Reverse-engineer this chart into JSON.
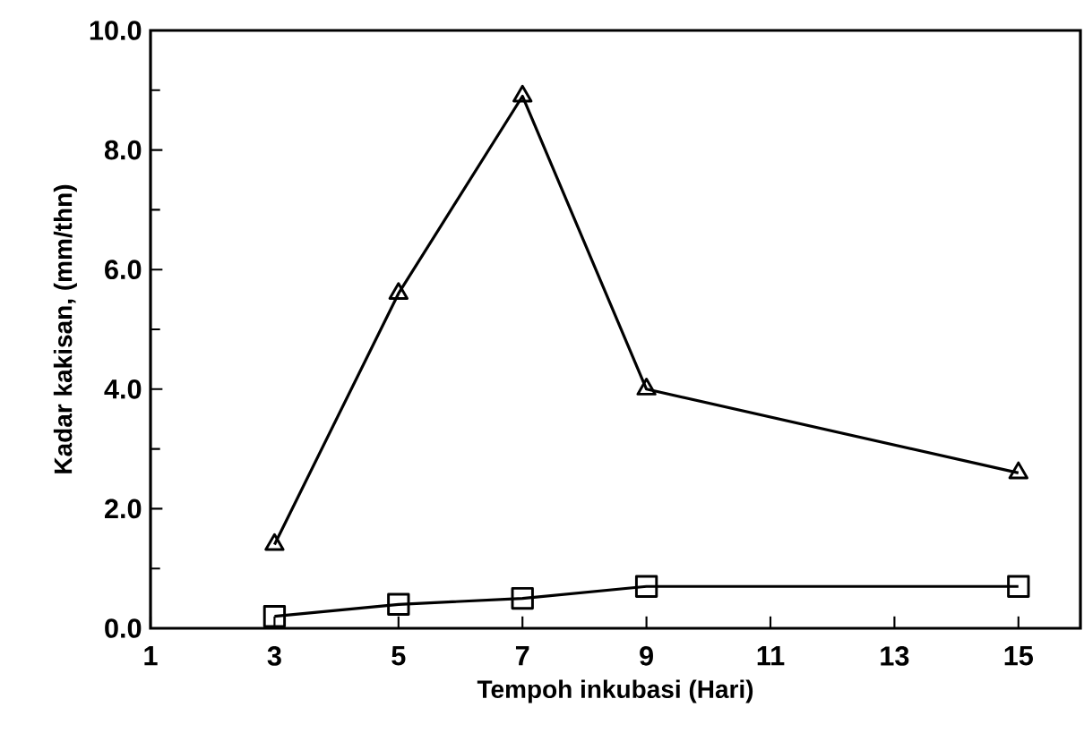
{
  "chart_data": {
    "type": "line",
    "xlabel": "Tempoh inkubasi (Hari)",
    "ylabel": "Kadar kakisan, (mm/thn)",
    "x": [
      3,
      5,
      7,
      9,
      15
    ],
    "series": [
      {
        "color": "#000000",
        "marker": "triangle",
        "values": [
          1.4,
          5.6,
          8.9,
          4.0,
          2.6
        ]
      },
      {
        "color": "#000000",
        "marker": "square",
        "values": [
          0.2,
          0.4,
          0.5,
          0.7,
          0.7
        ]
      }
    ],
    "xlim": [
      1,
      16
    ],
    "xticks": [
      1,
      3,
      5,
      7,
      9,
      11,
      13,
      15
    ],
    "ylim": [
      0,
      10
    ],
    "yticks": [
      {
        "value": 0,
        "label": "0.0"
      },
      {
        "value": 2,
        "label": "2.0"
      },
      {
        "value": 4,
        "label": "4.0"
      },
      {
        "value": 6,
        "label": "6.0"
      },
      {
        "value": 8,
        "label": "8.0"
      },
      {
        "value": 10,
        "label": "10.0"
      }
    ],
    "grid": false,
    "line_style": "solid"
  }
}
